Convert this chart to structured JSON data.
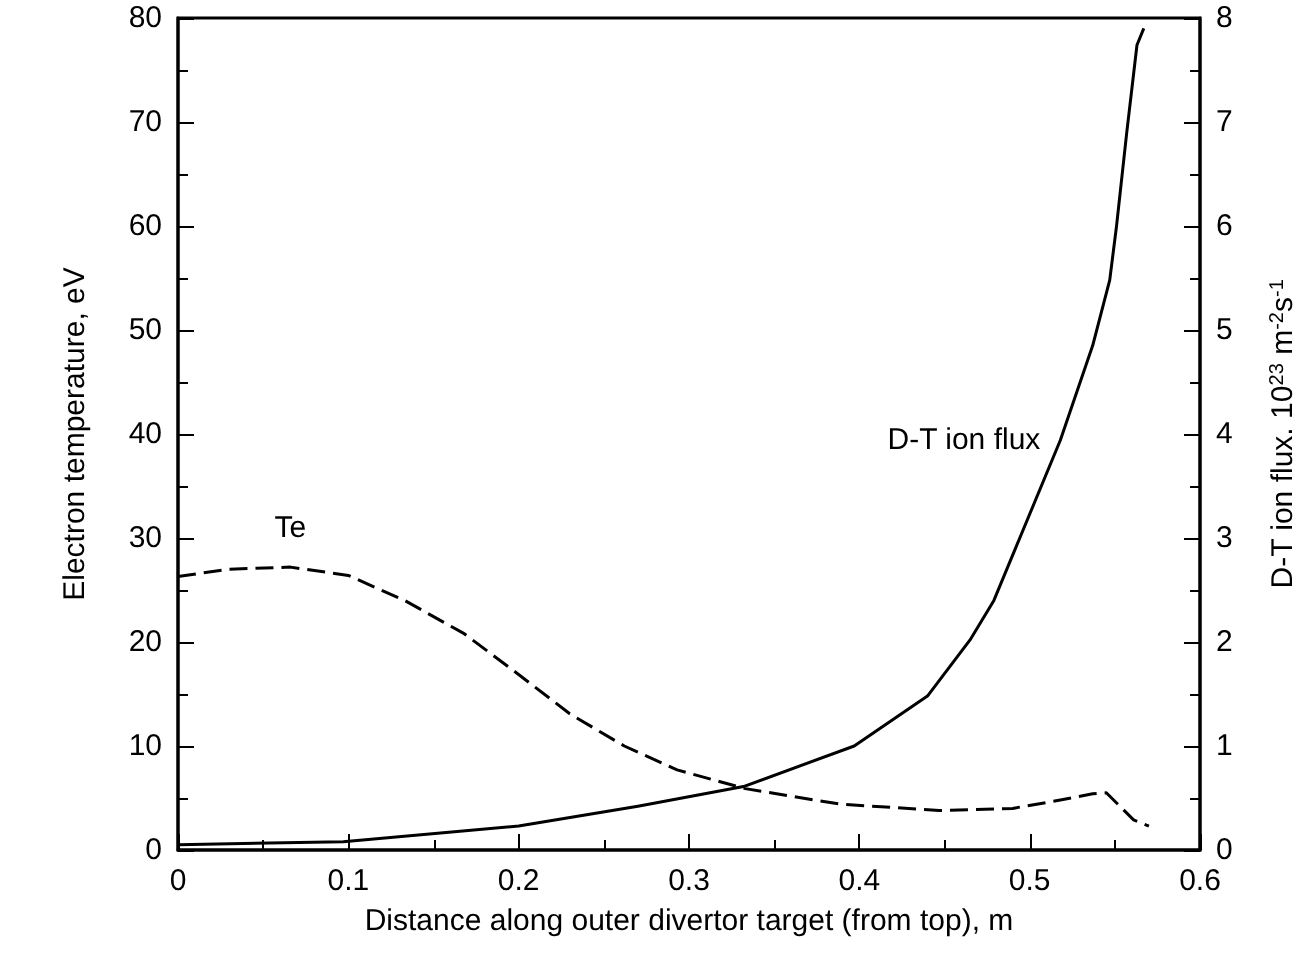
{
  "chart_data": {
    "type": "line",
    "xlabel": "Distance along outer divertor target (from top), m",
    "ylabel": "Electron temperature, eV",
    "y2label": "D-T ion flux. 10$^{23}$ m$^{-2}$s$^{-1}$",
    "xlim": [
      0,
      0.6
    ],
    "xticks": [
      0,
      0.1,
      0.2,
      0.3,
      0.4,
      0.5,
      0.6
    ],
    "ylim": [
      0,
      80
    ],
    "yticks": [
      0,
      10,
      20,
      30,
      40,
      50,
      60,
      70,
      80
    ],
    "y2lim": [
      0,
      8
    ],
    "y2ticks": [
      0,
      1,
      2,
      3,
      4,
      5,
      6,
      7,
      8
    ],
    "grid": false,
    "legend": false,
    "marker": "none",
    "series": [
      {
        "name": "Te",
        "color": "#000000",
        "line_style": "dashed",
        "x": [
          0,
          0.03,
          0.066,
          0.1,
          0.133,
          0.168,
          0.199,
          0.23,
          0.262,
          0.293,
          0.333,
          0.389,
          0.447,
          0.49,
          0.518,
          0.537,
          0.545,
          0.553,
          0.561,
          0.57
        ],
        "values": [
          26.3,
          27,
          27.2,
          26.4,
          24.0,
          20.8,
          17.0,
          13.1,
          10.0,
          7.7,
          5.9,
          4.4,
          3.8,
          4.0,
          4.8,
          5.4,
          5.5,
          4.2,
          2.9,
          2.3
        ]
      },
      {
        "name": "D-T ion flux",
        "color": "#000000",
        "line_style": "solid",
        "axis": "y2",
        "x": [
          0,
          0.097,
          0.2,
          0.27,
          0.332,
          0.397,
          0.44,
          0.465,
          0.479,
          0.518,
          0.537,
          0.547,
          0.551,
          0.557,
          0.563,
          0.567
        ],
        "values": [
          0.05,
          0.08,
          0.23,
          0.42,
          0.61,
          1.0,
          1.48,
          2.02,
          2.4,
          3.94,
          4.85,
          5.48,
          6.0,
          6.9,
          7.74,
          7.9
        ]
      }
    ]
  }
}
